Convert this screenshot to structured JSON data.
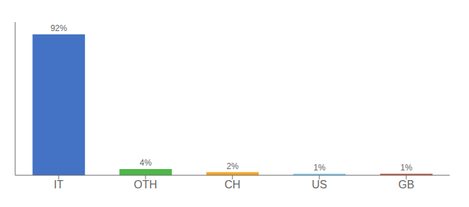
{
  "chart_data": {
    "type": "bar",
    "categories": [
      "IT",
      "OTH",
      "CH",
      "US",
      "GB"
    ],
    "values": [
      92,
      4,
      2,
      1,
      1
    ],
    "value_labels": [
      "92%",
      "4%",
      "2%",
      "1%",
      "1%"
    ],
    "colors": [
      "#4472c4",
      "#4db848",
      "#f5a623",
      "#7ecef4",
      "#c0604a"
    ],
    "ylim": [
      0,
      100
    ],
    "data_labels": true,
    "tick_labels": "x",
    "grid": false
  }
}
